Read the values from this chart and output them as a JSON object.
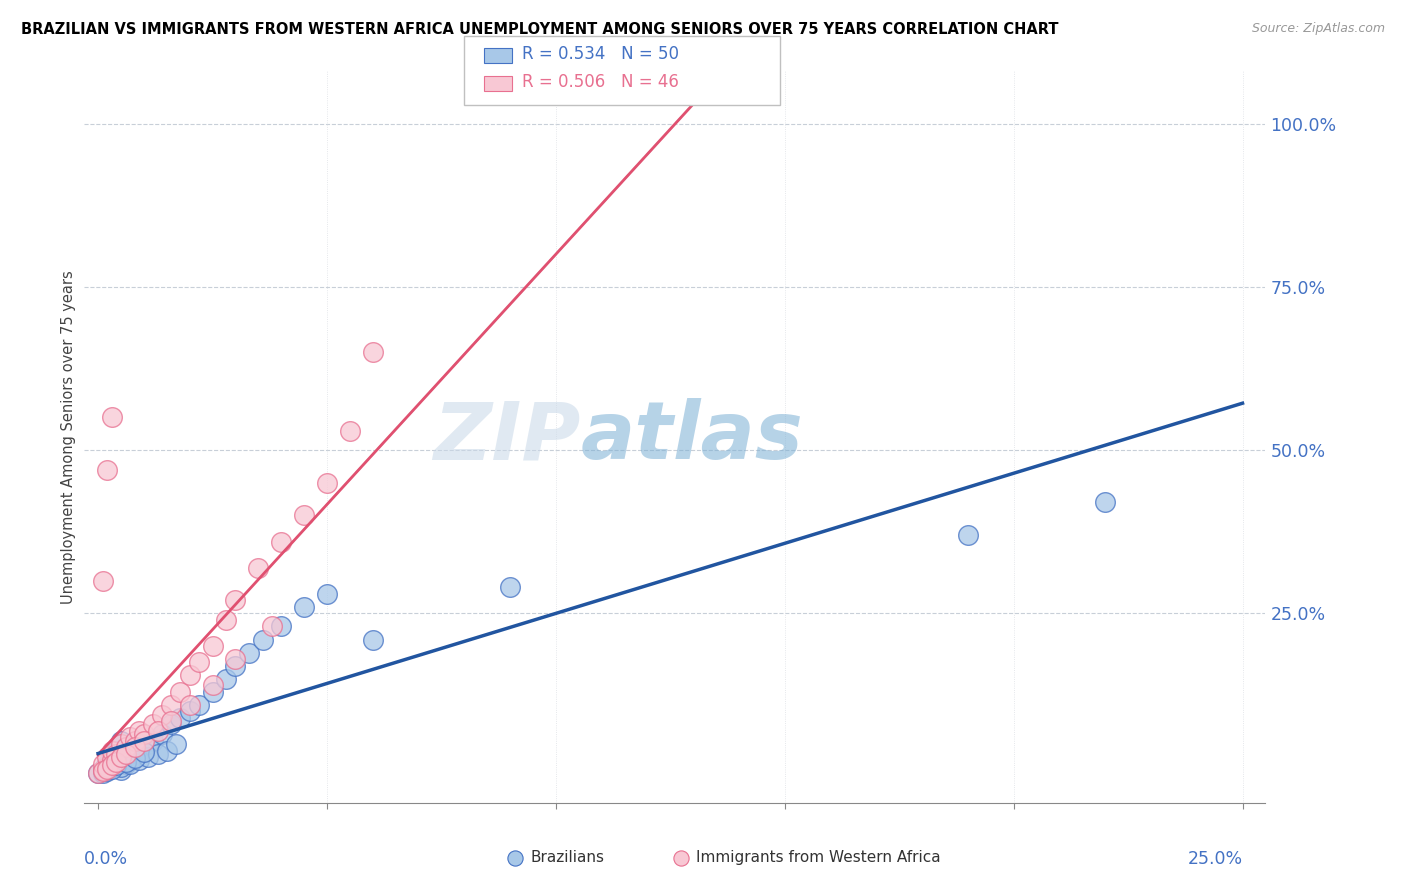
{
  "title": "BRAZILIAN VS IMMIGRANTS FROM WESTERN AFRICA UNEMPLOYMENT AMONG SENIORS OVER 75 YEARS CORRELATION CHART",
  "source": "Source: ZipAtlas.com",
  "ylabel": "Unemployment Among Seniors over 75 years",
  "xlim": [
    0.0,
    0.25
  ],
  "ylim": [
    -0.02,
    1.05
  ],
  "color_blue_fill": "#a8c8e8",
  "color_blue_edge": "#4472c4",
  "color_pink_fill": "#f8c8d4",
  "color_pink_edge": "#e87090",
  "color_blue_line": "#2155a0",
  "color_pink_line": "#e05070",
  "watermark_zip": "#c8d8e8",
  "watermark_atlas": "#7bafd4",
  "braz_x": [
    0.0,
    0.001,
    0.0015,
    0.002,
    0.0025,
    0.003,
    0.003,
    0.004,
    0.005,
    0.005,
    0.006,
    0.007,
    0.008,
    0.009,
    0.01,
    0.011,
    0.012,
    0.014,
    0.016,
    0.018,
    0.02,
    0.022,
    0.025,
    0.028,
    0.03,
    0.033,
    0.036,
    0.04,
    0.045,
    0.05,
    0.001,
    0.002,
    0.003,
    0.005,
    0.007,
    0.009,
    0.011,
    0.013,
    0.015,
    0.017,
    0.002,
    0.003,
    0.004,
    0.006,
    0.008,
    0.01,
    0.06,
    0.09,
    0.19,
    0.22
  ],
  "braz_y": [
    0.005,
    0.01,
    0.015,
    0.02,
    0.025,
    0.03,
    0.035,
    0.04,
    0.01,
    0.055,
    0.02,
    0.025,
    0.03,
    0.035,
    0.04,
    0.05,
    0.055,
    0.065,
    0.08,
    0.09,
    0.1,
    0.11,
    0.13,
    0.15,
    0.17,
    0.19,
    0.21,
    0.23,
    0.26,
    0.28,
    0.005,
    0.01,
    0.015,
    0.015,
    0.02,
    0.025,
    0.03,
    0.035,
    0.04,
    0.05,
    0.008,
    0.012,
    0.018,
    0.022,
    0.028,
    0.038,
    0.21,
    0.29,
    0.37,
    0.42
  ],
  "immig_x": [
    0.0,
    0.001,
    0.001,
    0.002,
    0.002,
    0.003,
    0.003,
    0.004,
    0.005,
    0.006,
    0.007,
    0.008,
    0.009,
    0.01,
    0.012,
    0.014,
    0.016,
    0.018,
    0.02,
    0.022,
    0.025,
    0.028,
    0.03,
    0.035,
    0.04,
    0.045,
    0.001,
    0.002,
    0.003,
    0.004,
    0.005,
    0.006,
    0.008,
    0.01,
    0.013,
    0.016,
    0.02,
    0.025,
    0.03,
    0.038,
    0.001,
    0.002,
    0.003,
    0.05,
    0.055,
    0.06
  ],
  "immig_y": [
    0.005,
    0.01,
    0.02,
    0.015,
    0.03,
    0.025,
    0.04,
    0.035,
    0.05,
    0.045,
    0.06,
    0.055,
    0.07,
    0.065,
    0.08,
    0.095,
    0.11,
    0.13,
    0.155,
    0.175,
    0.2,
    0.24,
    0.27,
    0.32,
    0.36,
    0.4,
    0.008,
    0.012,
    0.018,
    0.022,
    0.03,
    0.035,
    0.045,
    0.055,
    0.07,
    0.085,
    0.11,
    0.14,
    0.18,
    0.23,
    0.3,
    0.47,
    0.55,
    0.45,
    0.53,
    0.65
  ]
}
